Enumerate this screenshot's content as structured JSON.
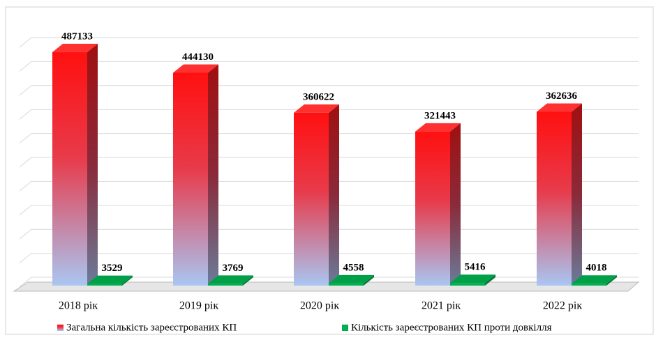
{
  "chart_data": {
    "type": "bar3d",
    "categories": [
      "2018 рік",
      "2019 рік",
      "2020 рік",
      "2021 рік",
      "2022 рік"
    ],
    "series": [
      {
        "name": "Загальна кількість зареєстрованих КП",
        "color": "#ff1a1a",
        "values": [
          487133,
          444130,
          360622,
          321443,
          362636
        ]
      },
      {
        "name": "Кількість зареєстрованих КП проти довкілля",
        "color": "#00b050",
        "values": [
          3529,
          3769,
          4558,
          5416,
          4018
        ]
      }
    ],
    "ylim": [
      0,
      500000
    ],
    "yticks": [
      0,
      50000,
      100000,
      150000,
      200000,
      250000,
      300000,
      350000,
      400000,
      450000,
      500000
    ],
    "grid": true
  }
}
